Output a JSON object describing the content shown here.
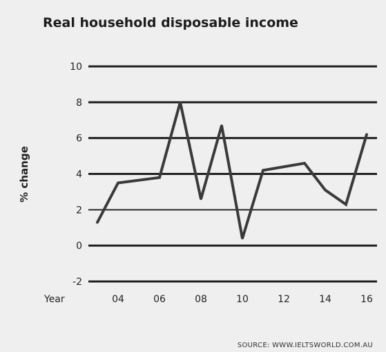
{
  "chart_data": {
    "type": "line",
    "title": "Real household disposable income",
    "ylabel": "% change",
    "xlabel": "Year",
    "ylim": [
      -2,
      10
    ],
    "y_ticks": [
      "-2",
      "0",
      "2",
      "4",
      "6",
      "8",
      "10"
    ],
    "x_ticks": [
      "04",
      "06",
      "08",
      "10",
      "12",
      "14",
      "16"
    ],
    "x": [
      2003,
      2004,
      2006,
      2007,
      2008,
      2009,
      2010,
      2011,
      2013,
      2014,
      2015,
      2016
    ],
    "series": [
      {
        "values": [
          1.3,
          3.5,
          3.8,
          8.0,
          2.6,
          6.7,
          0.4,
          4.2,
          4.6,
          3.1,
          2.3,
          6.2
        ]
      }
    ],
    "grid": true,
    "legend": "none",
    "source": "SOURCE: WWW.IELTSWORLD.COM.AU"
  }
}
